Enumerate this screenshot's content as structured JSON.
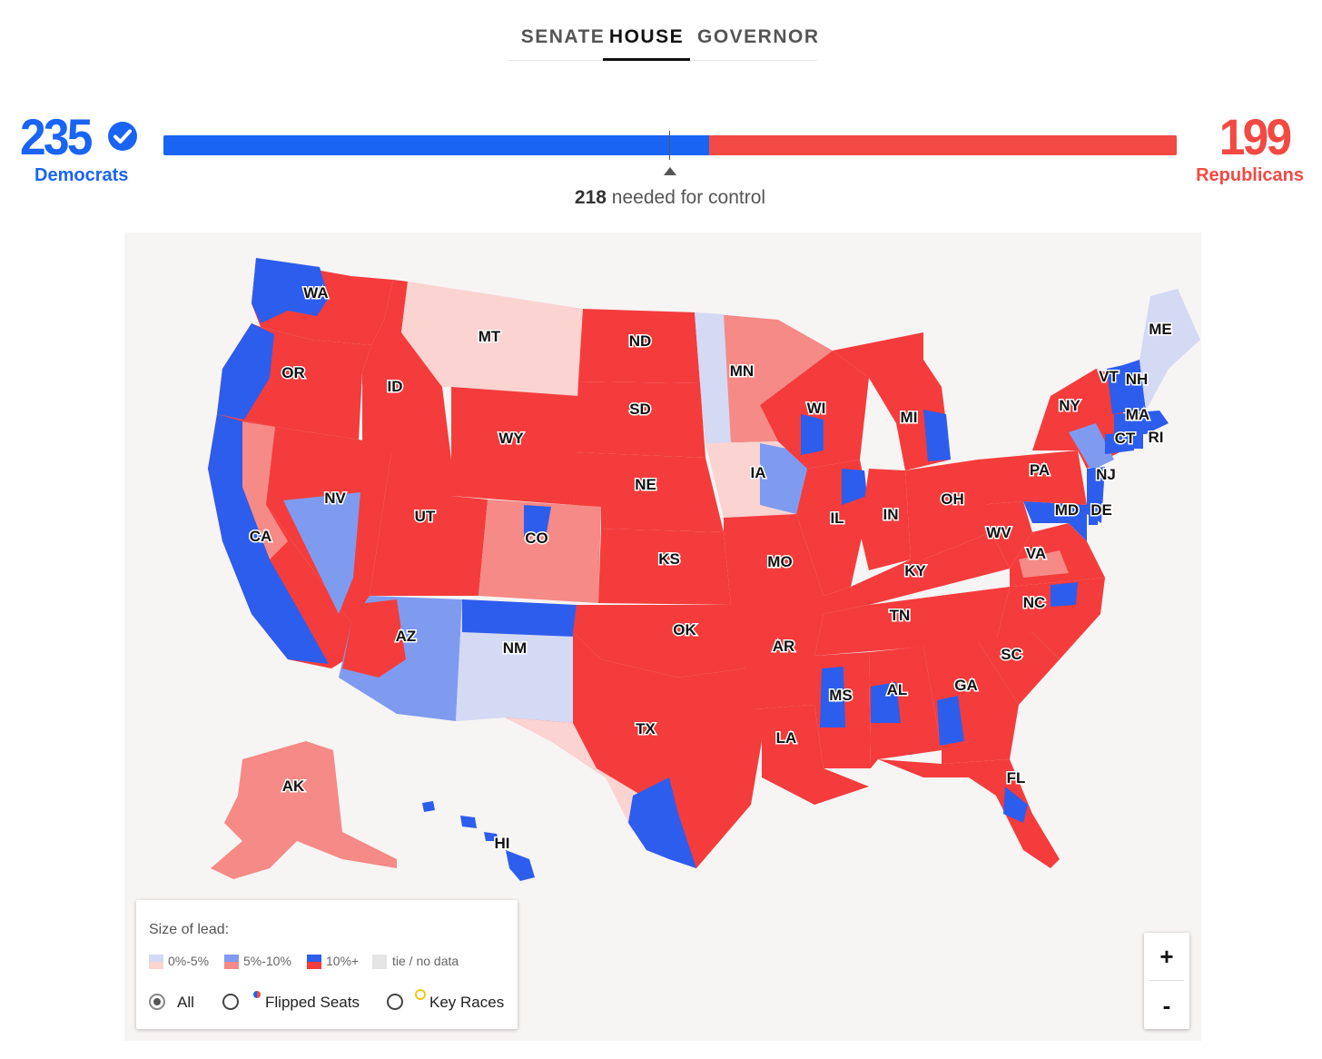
{
  "tabs": [
    {
      "label": "SENATE",
      "active": false
    },
    {
      "label": "HOUSE",
      "active": true
    },
    {
      "label": "GOVERNOR",
      "active": false
    }
  ],
  "scoreboard": {
    "democrats": {
      "count": "235",
      "label": "Democrats",
      "color": "#1a64f3",
      "winner": true
    },
    "republicans": {
      "count": "199",
      "label": "Republicans",
      "color": "#f24a43"
    },
    "total_seats": 435,
    "control_number": "218",
    "control_text": "needed for control"
  },
  "legend": {
    "title": "Size of lead:",
    "scale": [
      {
        "label": "0%-5%",
        "dem_color": "#d4d9f4",
        "rep_color": "#fbd3d1"
      },
      {
        "label": "5%-10%",
        "dem_color": "#7f9bf0",
        "rep_color": "#f58a86"
      },
      {
        "label": "10%+",
        "dem_color": "#2d5ded",
        "rep_color": "#f43c3c"
      },
      {
        "label": "tie / no data",
        "color": "#e5e5e5"
      }
    ],
    "filters": [
      {
        "label": "All",
        "checked": true
      },
      {
        "label": "Flipped Seats",
        "checked": false
      },
      {
        "label": "Key Races",
        "checked": false
      }
    ]
  },
  "zoom": {
    "in": "+",
    "out": "-"
  },
  "states": [
    {
      "abbr": "WA",
      "party": "D",
      "lead": "10+"
    },
    {
      "abbr": "OR",
      "party": "R",
      "lead": "10+"
    },
    {
      "abbr": "CA",
      "party": "D",
      "lead": "10+"
    },
    {
      "abbr": "ID",
      "party": "R",
      "lead": "10+"
    },
    {
      "abbr": "NV",
      "party": "D",
      "lead": "5-10"
    },
    {
      "abbr": "MT",
      "party": "R",
      "lead": "0-5"
    },
    {
      "abbr": "WY",
      "party": "R",
      "lead": "10+"
    },
    {
      "abbr": "UT",
      "party": "R",
      "lead": "10+"
    },
    {
      "abbr": "AZ",
      "party": "D",
      "lead": "5-10"
    },
    {
      "abbr": "CO",
      "party": "R",
      "lead": "5-10"
    },
    {
      "abbr": "NM",
      "party": "D",
      "lead": "0-5"
    },
    {
      "abbr": "ND",
      "party": "R",
      "lead": "10+"
    },
    {
      "abbr": "SD",
      "party": "R",
      "lead": "10+"
    },
    {
      "abbr": "NE",
      "party": "R",
      "lead": "10+"
    },
    {
      "abbr": "KS",
      "party": "R",
      "lead": "10+"
    },
    {
      "abbr": "OK",
      "party": "R",
      "lead": "10+"
    },
    {
      "abbr": "TX",
      "party": "R",
      "lead": "10+"
    },
    {
      "abbr": "MN",
      "party": "R",
      "lead": "5-10"
    },
    {
      "abbr": "IA",
      "party": "R",
      "lead": "0-5"
    },
    {
      "abbr": "MO",
      "party": "R",
      "lead": "10+"
    },
    {
      "abbr": "AR",
      "party": "R",
      "lead": "10+"
    },
    {
      "abbr": "LA",
      "party": "R",
      "lead": "10+"
    },
    {
      "abbr": "WI",
      "party": "R",
      "lead": "10+"
    },
    {
      "abbr": "IL",
      "party": "R",
      "lead": "10+"
    },
    {
      "abbr": "MI",
      "party": "R",
      "lead": "10+"
    },
    {
      "abbr": "IN",
      "party": "R",
      "lead": "10+"
    },
    {
      "abbr": "OH",
      "party": "R",
      "lead": "10+"
    },
    {
      "abbr": "KY",
      "party": "R",
      "lead": "10+"
    },
    {
      "abbr": "TN",
      "party": "R",
      "lead": "10+"
    },
    {
      "abbr": "MS",
      "party": "R",
      "lead": "10+"
    },
    {
      "abbr": "AL",
      "party": "R",
      "lead": "10+"
    },
    {
      "abbr": "GA",
      "party": "R",
      "lead": "10+"
    },
    {
      "abbr": "FL",
      "party": "R",
      "lead": "10+"
    },
    {
      "abbr": "SC",
      "party": "R",
      "lead": "10+"
    },
    {
      "abbr": "NC",
      "party": "R",
      "lead": "10+"
    },
    {
      "abbr": "VA",
      "party": "R",
      "lead": "10+"
    },
    {
      "abbr": "WV",
      "party": "R",
      "lead": "10+"
    },
    {
      "abbr": "PA",
      "party": "R",
      "lead": "10+"
    },
    {
      "abbr": "NY",
      "party": "R",
      "lead": "10+"
    },
    {
      "abbr": "MD",
      "party": "D",
      "lead": "10+"
    },
    {
      "abbr": "DE",
      "party": "D",
      "lead": "10+"
    },
    {
      "abbr": "NJ",
      "party": "D",
      "lead": "10+"
    },
    {
      "abbr": "CT",
      "party": "D",
      "lead": "10+"
    },
    {
      "abbr": "RI",
      "party": "D",
      "lead": "10+"
    },
    {
      "abbr": "MA",
      "party": "D",
      "lead": "10+"
    },
    {
      "abbr": "VT",
      "party": "D",
      "lead": "10+"
    },
    {
      "abbr": "NH",
      "party": "D",
      "lead": "10+"
    },
    {
      "abbr": "ME",
      "party": "D",
      "lead": "0-5"
    },
    {
      "abbr": "AK",
      "party": "R",
      "lead": "5-10"
    },
    {
      "abbr": "HI",
      "party": "D",
      "lead": "10+"
    }
  ]
}
